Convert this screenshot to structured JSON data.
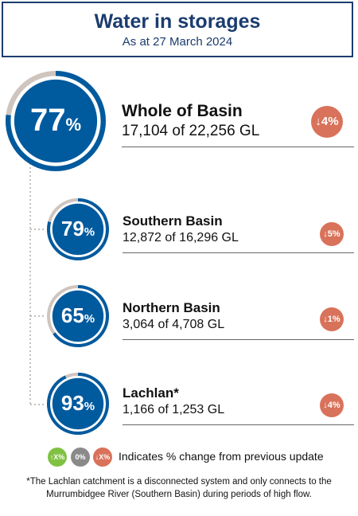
{
  "header": {
    "title": "Water in storages",
    "subtitle": "As at 27 March 2024"
  },
  "storages": [
    {
      "id": "whole-of-basin",
      "name": "Whole of Basin",
      "percent": 77,
      "percent_symbol": "%",
      "volume_text": "17,104 of 22,256 GL",
      "change_label": "↓4%",
      "change_direction": "down"
    },
    {
      "id": "southern-basin",
      "name": "Southern Basin",
      "percent": 79,
      "percent_symbol": "%",
      "volume_text": "12,872 of 16,296 GL",
      "change_label": "↓5%",
      "change_direction": "down"
    },
    {
      "id": "northern-basin",
      "name": "Northern Basin",
      "percent": 65,
      "percent_symbol": "%",
      "volume_text": "3,064 of 4,708 GL",
      "change_label": "↓1%",
      "change_direction": "down"
    },
    {
      "id": "lachlan",
      "name": "Lachlan*",
      "percent": 93,
      "percent_symbol": "%",
      "volume_text": "1,166 of 1,253 GL",
      "change_label": "↓4%",
      "change_direction": "down"
    }
  ],
  "legend": {
    "up_label": "↑X%",
    "zero_label": "0%",
    "down_label": "↓X%",
    "text": "Indicates % change from previous update"
  },
  "footnote": "*The Lachlan catchment is a disconnected system and only connects to the Murrumbidgee River (Southern Basin) during periods of high flow.",
  "colors": {
    "ring_fill": "#005a9e",
    "ring_track": "#cfc5be",
    "decrease_badge": "#d9725a",
    "increase_badge": "#7fc242",
    "no_change_badge": "#8a8a8a",
    "header_text": "#1b3c6e"
  }
}
